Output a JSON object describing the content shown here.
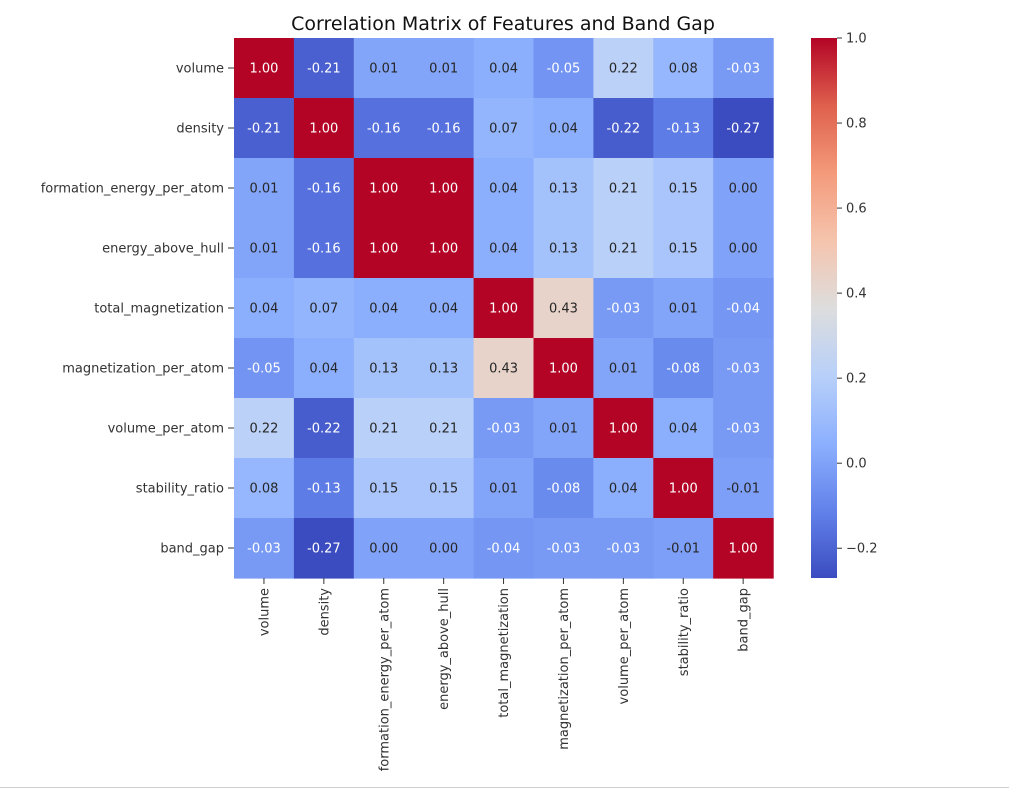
{
  "chart_data": {
    "type": "heatmap",
    "title": "Correlation Matrix of Features and Band Gap",
    "labels": [
      "volume",
      "density",
      "formation_energy_per_atom",
      "energy_above_hull",
      "total_magnetization",
      "magnetization_per_atom",
      "volume_per_atom",
      "stability_ratio",
      "band_gap"
    ],
    "values": [
      [
        1.0,
        -0.21,
        0.01,
        0.01,
        0.04,
        -0.05,
        0.22,
        0.08,
        -0.03
      ],
      [
        -0.21,
        1.0,
        -0.16,
        -0.16,
        0.07,
        0.04,
        -0.22,
        -0.13,
        -0.27
      ],
      [
        0.01,
        -0.16,
        1.0,
        1.0,
        0.04,
        0.13,
        0.21,
        0.15,
        0.0
      ],
      [
        0.01,
        -0.16,
        1.0,
        1.0,
        0.04,
        0.13,
        0.21,
        0.15,
        0.0
      ],
      [
        0.04,
        0.07,
        0.04,
        0.04,
        1.0,
        0.43,
        -0.03,
        0.01,
        -0.04
      ],
      [
        -0.05,
        0.04,
        0.13,
        0.13,
        0.43,
        1.0,
        0.01,
        -0.08,
        -0.03
      ],
      [
        0.22,
        -0.22,
        0.21,
        0.21,
        -0.03,
        0.01,
        1.0,
        0.04,
        -0.03
      ],
      [
        0.08,
        -0.13,
        0.15,
        0.15,
        0.01,
        -0.08,
        0.04,
        1.0,
        -0.01
      ],
      [
        -0.03,
        -0.27,
        0.0,
        0.0,
        -0.04,
        -0.03,
        -0.03,
        -0.01,
        1.0
      ]
    ],
    "colormap": "coolwarm",
    "color_range": [
      -0.27,
      1.0
    ],
    "colorbar": {
      "ticks": [
        1.0,
        0.8,
        0.6,
        0.4,
        0.2,
        0.0,
        -0.2
      ],
      "tick_labels": [
        "1.0",
        "0.8",
        "0.6",
        "0.4",
        "0.2",
        "0.0",
        "−0.2"
      ]
    },
    "annotation_format": "2 decimals"
  }
}
